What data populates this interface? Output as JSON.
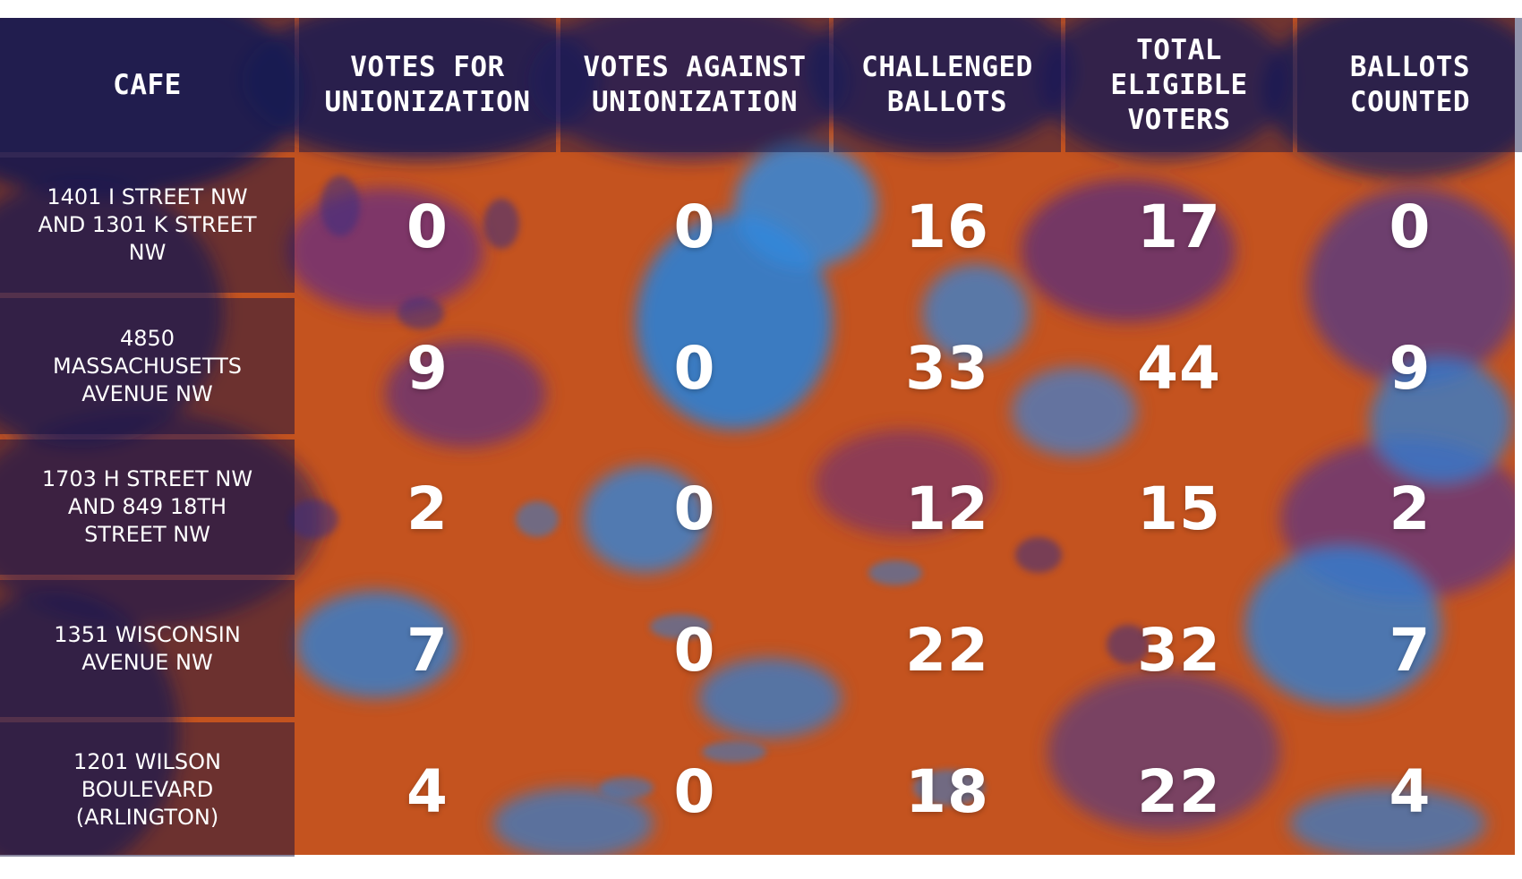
{
  "table": {
    "headers": [
      "CAFE",
      "VOTES FOR UNIONIZATION",
      "VOTES AGAINST UNIONIZATION",
      "CHALLENGED BALLOTS",
      "TOTAL ELIGIBLE VOTERS",
      "BALLOTS COUNTED"
    ],
    "rows": [
      {
        "cafe": "1401 I STREET NW AND 1301 K STREET NW",
        "values": [
          "0",
          "0",
          "16",
          "17",
          "0"
        ]
      },
      {
        "cafe": "4850 MASSACHUSETTS AVENUE NW",
        "values": [
          "9",
          "0",
          "33",
          "44",
          "9"
        ]
      },
      {
        "cafe": "1703 H STREET NW AND 849 18TH STREET NW",
        "values": [
          "2",
          "0",
          "12",
          "15",
          "2"
        ]
      },
      {
        "cafe": "1351 WISCONSIN AVENUE NW",
        "values": [
          "7",
          "0",
          "22",
          "32",
          "7"
        ]
      },
      {
        "cafe": "1201 WILSON BOULEVARD (ARLINGTON)",
        "values": [
          "4",
          "0",
          "18",
          "22",
          "4"
        ]
      }
    ]
  },
  "colors": {
    "orange": "#c4531f",
    "blue": "#2f7fd3",
    "navy": "#1b1f5e",
    "purple": "#6d2f7a",
    "text": "#ffffff"
  }
}
